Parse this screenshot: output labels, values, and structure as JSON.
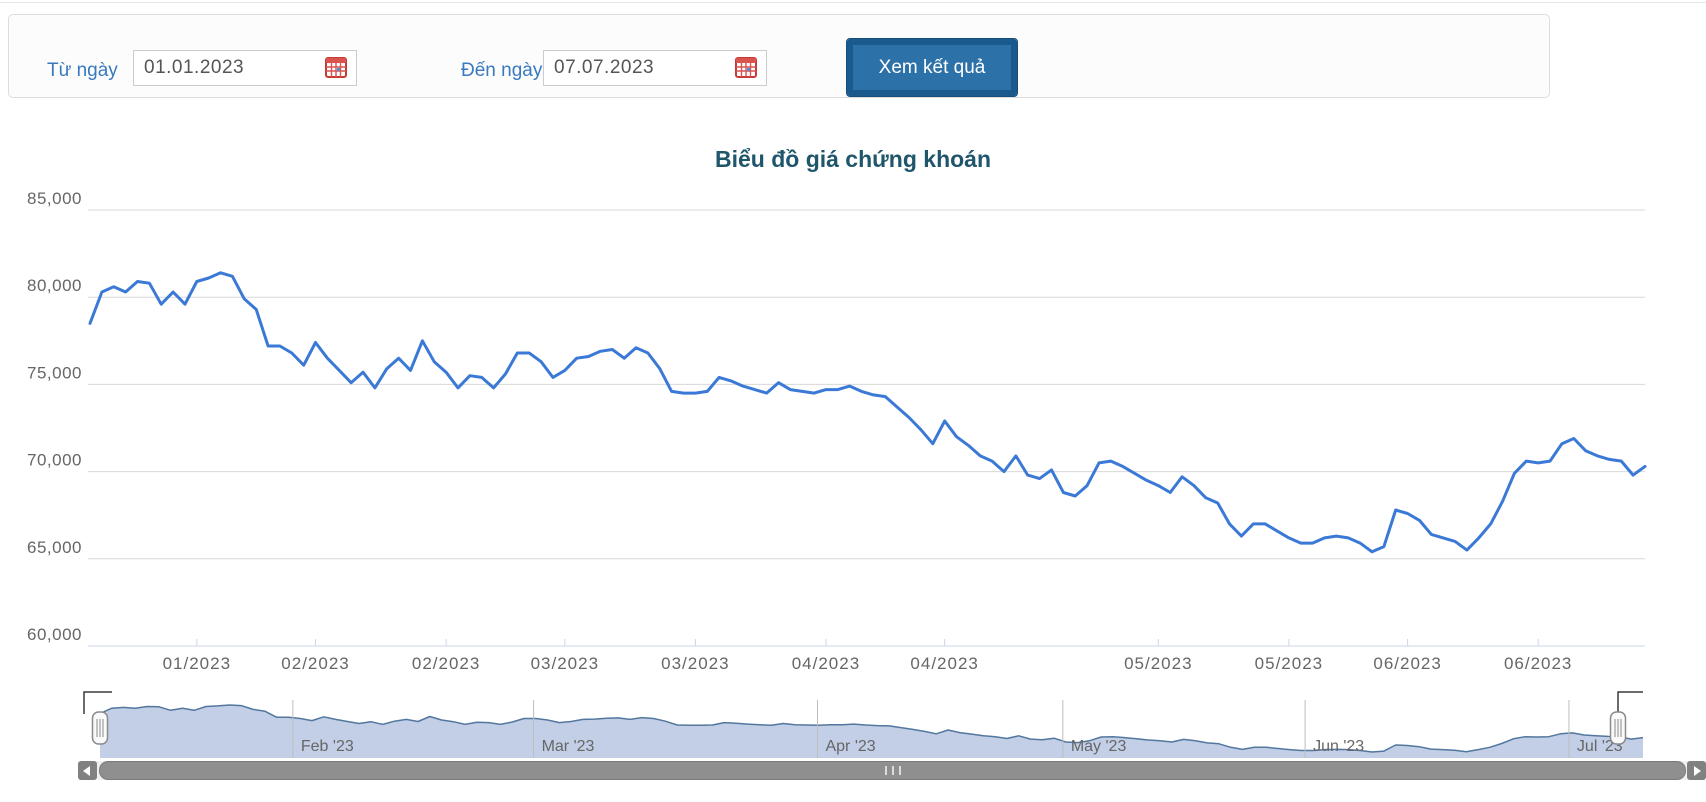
{
  "filter": {
    "from_label": "Từ ngày",
    "from_value": "01.01.2023",
    "to_label": "Đến ngày",
    "to_value": "07.07.2023",
    "submit_label": "Xem kết quả",
    "label_color": "#3879bf",
    "button_color": "#2d71a9"
  },
  "chart": {
    "title": "Biểu đồ giá chứng khoán",
    "title_color": "#1f566b"
  },
  "chart_data": {
    "type": "line",
    "title": "Biểu đồ giá chứng khoán",
    "series_name": "Giá chứng khoán",
    "series_color": "#3b79d6",
    "grid": true,
    "legend": "none",
    "ylim": [
      60000,
      85000
    ],
    "y_ticks": [
      85000,
      80000,
      75000,
      70000,
      65000,
      60000
    ],
    "x_ticks": [
      {
        "label": "01/2023",
        "i": 9
      },
      {
        "label": "02/2023",
        "i": 19
      },
      {
        "label": "02/2023",
        "i": 30
      },
      {
        "label": "03/2023",
        "i": 40
      },
      {
        "label": "03/2023",
        "i": 51
      },
      {
        "label": "04/2023",
        "i": 62
      },
      {
        "label": "04/2023",
        "i": 72
      },
      {
        "label": "05/2023",
        "i": 90
      },
      {
        "label": "05/2023",
        "i": 101
      },
      {
        "label": "06/2023",
        "i": 111
      },
      {
        "label": "06/2023",
        "i": 122
      }
    ],
    "values": [
      78500,
      80300,
      80600,
      80300,
      80900,
      80800,
      79600,
      80300,
      79600,
      80900,
      81100,
      81400,
      81200,
      79900,
      79300,
      77200,
      77200,
      76800,
      76100,
      77400,
      76500,
      75800,
      75100,
      75700,
      74800,
      75900,
      76500,
      75800,
      77500,
      76300,
      75700,
      74800,
      75500,
      75400,
      74800,
      75600,
      76800,
      76800,
      76300,
      75400,
      75800,
      76500,
      76600,
      76900,
      77000,
      76500,
      77100,
      76800,
      75900,
      74600,
      74500,
      74500,
      74600,
      75400,
      75200,
      74900,
      74700,
      74500,
      75100,
      74700,
      74600,
      74500,
      74700,
      74700,
      74900,
      74600,
      74400,
      74300,
      73700,
      73100,
      72400,
      71600,
      72900,
      72000,
      71500,
      70900,
      70600,
      70000,
      70900,
      69800,
      69600,
      70100,
      68800,
      68600,
      69200,
      70500,
      70600,
      70300,
      69900,
      69500,
      69200,
      68800,
      69700,
      69200,
      68500,
      68200,
      67000,
      66300,
      67000,
      67000,
      66600,
      66200,
      65900,
      65900,
      66200,
      66300,
      66200,
      65900,
      65400,
      65700,
      67800,
      67600,
      67200,
      66400,
      66200,
      66000,
      65500,
      66200,
      67000,
      68300,
      69900,
      70600,
      70500,
      70600,
      71600,
      71900,
      71200,
      70900,
      70700,
      70600,
      69800,
      70300
    ],
    "navigator": {
      "fill_color": "#b9c7e2",
      "line_color": "#53779f",
      "months": [
        {
          "label": "Feb '23",
          "f": 0.125
        },
        {
          "label": "Mar '23",
          "f": 0.281
        },
        {
          "label": "Apr '23",
          "f": 0.465
        },
        {
          "label": "May '23",
          "f": 0.624
        },
        {
          "label": "Jun '23",
          "f": 0.781
        },
        {
          "label": "Jul '23",
          "f": 0.952
        }
      ]
    }
  }
}
